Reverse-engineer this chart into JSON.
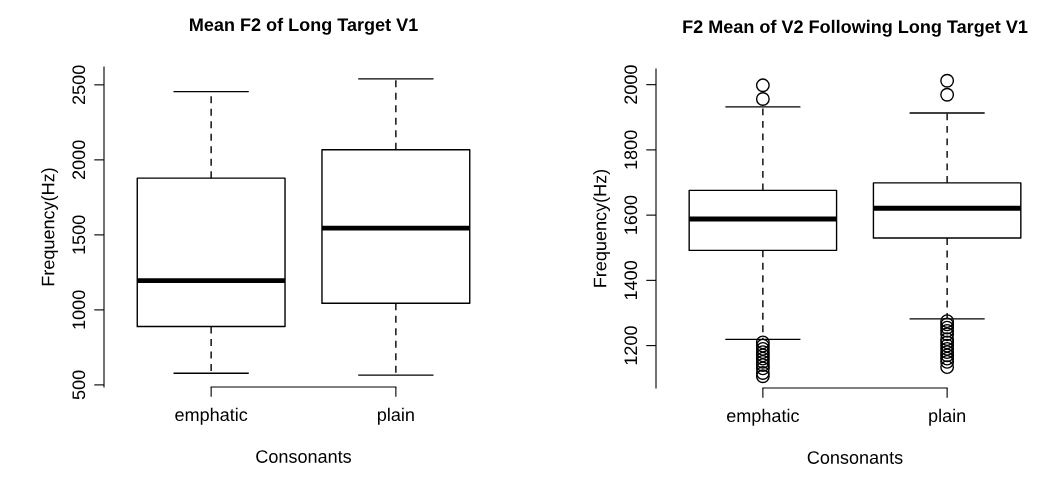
{
  "chart_data": [
    {
      "type": "box",
      "title": "Mean F2 of Long Target V1",
      "xlabel": "Consonants",
      "ylabel": "Frequency(Hz)",
      "categories": [
        "emphatic",
        "plain"
      ],
      "boxes": [
        {
          "low": 578,
          "q1": 889,
          "median": 1195,
          "q3": 1878,
          "high": 2455
        },
        {
          "low": 565,
          "q1": 1044,
          "median": 1545,
          "q3": 2067,
          "high": 2540
        }
      ],
      "ylim": [
        486,
        2619
      ],
      "yticks": [
        500,
        1000,
        1500,
        2000,
        2500
      ]
    },
    {
      "type": "box",
      "title": "F2 Mean of V2 Following Long Target V1",
      "xlabel": "Consonants",
      "ylabel": "Frequency(Hz)",
      "categories": [
        "emphatic",
        "plain"
      ],
      "boxes": [
        {
          "low": 1219,
          "q1": 1492,
          "median": 1588,
          "q3": 1676,
          "high": 1932,
          "outliers": [
            1998,
            1956,
            1210,
            1200,
            1190,
            1180,
            1170,
            1160,
            1150,
            1140,
            1130,
            1116,
            1106
          ]
        },
        {
          "low": 1282,
          "q1": 1530,
          "median": 1621,
          "q3": 1699,
          "high": 1913,
          "outliers": [
            2012,
            1969,
            1275,
            1265,
            1255,
            1245,
            1235,
            1220,
            1210,
            1200,
            1190,
            1180,
            1170,
            1160,
            1150,
            1134
          ]
        }
      ],
      "ylim": [
        1070,
        2048
      ],
      "yticks": [
        1200,
        1400,
        1600,
        1800,
        2000
      ]
    }
  ]
}
